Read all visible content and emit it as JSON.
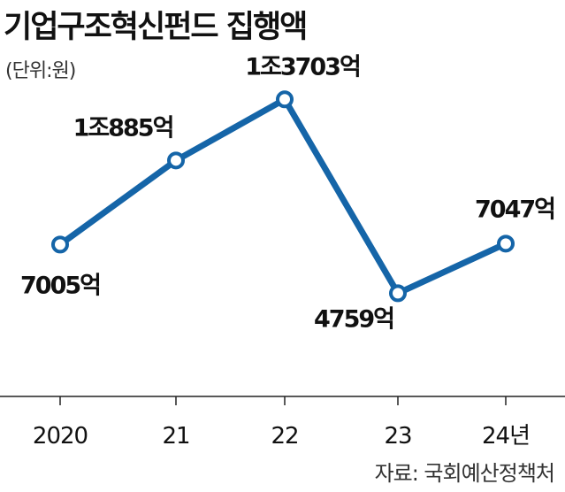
{
  "title": "기업구조혁신펀드 집행액",
  "unit": "(단위:원)",
  "source": "자료: 국회예산정책처",
  "colors": {
    "line": "#1565a8",
    "marker_fill": "#ffffff",
    "axis": "#222222"
  },
  "chart_data": {
    "type": "line",
    "title": "기업구조혁신펀드 집행액",
    "categories": [
      "2020",
      "21",
      "22",
      "23",
      "24년"
    ],
    "values": [
      7005,
      10885,
      13703,
      4759,
      7047
    ],
    "value_unit": "억원",
    "data_labels": [
      "7005억",
      "1조885억",
      "1조3703억",
      "4759억",
      "7047억"
    ],
    "xlabel": "",
    "ylabel": "",
    "ylim": [
      0,
      16000
    ],
    "grid": false,
    "legend": "none"
  }
}
